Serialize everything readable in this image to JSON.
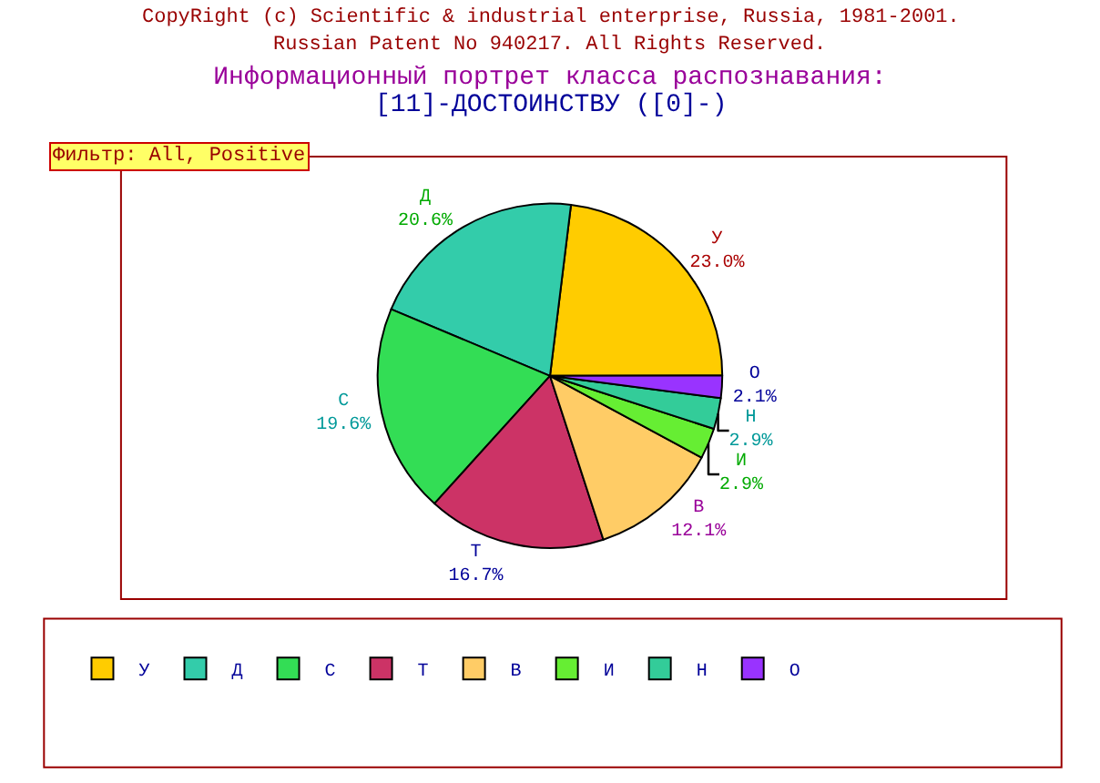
{
  "chart_data": {
    "type": "pie",
    "title": "Информационный портрет класса распознавания:",
    "subtitle": "[11]-ДОСТОИНСТВУ ([0]-)",
    "annotations": [
      "CopyRight (c) Scientific & industrial enterprise, Russia, 1981-2001.",
      "Russian Patent No 940217. All Rights Reserved.",
      "Фильтр: All, Positive"
    ],
    "categories": [
      "У",
      "Д",
      "С",
      "Т",
      "В",
      "И",
      "Н",
      "О"
    ],
    "values": [
      23.0,
      20.6,
      19.6,
      16.7,
      12.1,
      2.9,
      2.9,
      2.1
    ],
    "value_labels": [
      "23.0%",
      "20.6%",
      "19.6%",
      "16.7%",
      "12.1%",
      "2.9%",
      "2.9%",
      "2.1%"
    ],
    "colors": [
      "#ffcc00",
      "#33ccaa",
      "#33dd55",
      "#cc3366",
      "#ffcc66",
      "#66ee33",
      "#33cc99",
      "#9933ff"
    ],
    "legend": "bottom"
  }
}
